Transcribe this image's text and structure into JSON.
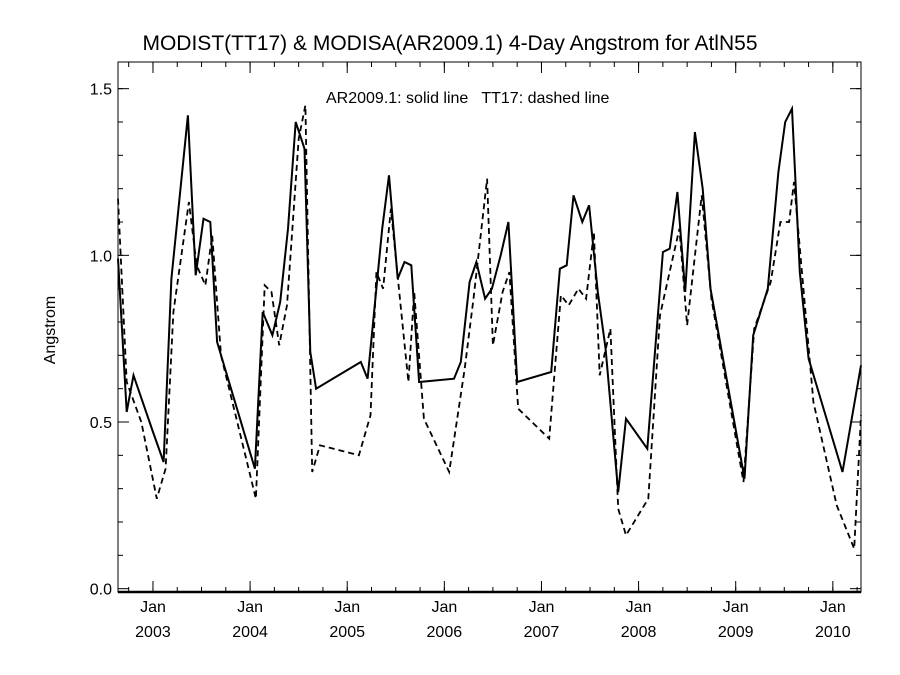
{
  "chart_data": {
    "type": "line",
    "title": "MODIST(TT17) & MODISA(AR2009.1) 4-Day Angstrom for AtlN55",
    "annotation": "AR2009.1: solid line   TT17: dashed line",
    "ylabel": "Angstrom",
    "xlabel": "",
    "xlim": [
      2002.64,
      2010.29
    ],
    "ylim": [
      -0.01,
      1.58
    ],
    "y_ticks": [
      {
        "value": 0.0,
        "label": "0.0"
      },
      {
        "value": 0.5,
        "label": "0.5"
      },
      {
        "value": 1.0,
        "label": "1.0"
      },
      {
        "value": 1.5,
        "label": "1.5"
      }
    ],
    "x_ticks": [
      {
        "value": 2003.0,
        "month": "Jan",
        "year": "2003"
      },
      {
        "value": 2004.0,
        "month": "Jan",
        "year": "2004"
      },
      {
        "value": 2005.0,
        "month": "Jan",
        "year": "2005"
      },
      {
        "value": 2006.0,
        "month": "Jan",
        "year": "2006"
      },
      {
        "value": 2007.0,
        "month": "Jan",
        "year": "2007"
      },
      {
        "value": 2008.0,
        "month": "Jan",
        "year": "2008"
      },
      {
        "value": 2009.0,
        "month": "Jan",
        "year": "2009"
      },
      {
        "value": 2010.0,
        "month": "Jan",
        "year": "2010"
      }
    ],
    "series": [
      {
        "name": "AR2009.1",
        "style": "solid",
        "points": [
          [
            2002.64,
            0.99
          ],
          [
            2002.73,
            0.53
          ],
          [
            2002.8,
            0.64
          ],
          [
            2003.0,
            0.47
          ],
          [
            2003.11,
            0.38
          ],
          [
            2003.19,
            0.93
          ],
          [
            2003.36,
            1.42
          ],
          [
            2003.44,
            0.94
          ],
          [
            2003.52,
            1.11
          ],
          [
            2003.59,
            1.1
          ],
          [
            2003.66,
            0.74
          ],
          [
            2004.05,
            0.36
          ],
          [
            2004.13,
            0.83
          ],
          [
            2004.23,
            0.76
          ],
          [
            2004.31,
            0.86
          ],
          [
            2004.39,
            1.08
          ],
          [
            2004.47,
            1.4
          ],
          [
            2004.56,
            1.32
          ],
          [
            2004.62,
            0.71
          ],
          [
            2004.68,
            0.6
          ],
          [
            2005.14,
            0.68
          ],
          [
            2005.21,
            0.63
          ],
          [
            2005.36,
            1.08
          ],
          [
            2005.43,
            1.24
          ],
          [
            2005.52,
            0.93
          ],
          [
            2005.59,
            0.98
          ],
          [
            2005.66,
            0.97
          ],
          [
            2005.74,
            0.62
          ],
          [
            2006.1,
            0.63
          ],
          [
            2006.17,
            0.68
          ],
          [
            2006.26,
            0.92
          ],
          [
            2006.33,
            0.98
          ],
          [
            2006.42,
            0.87
          ],
          [
            2006.49,
            0.9
          ],
          [
            2006.58,
            1.0
          ],
          [
            2006.66,
            1.1
          ],
          [
            2006.75,
            0.62
          ],
          [
            2007.1,
            0.65
          ],
          [
            2007.19,
            0.96
          ],
          [
            2007.26,
            0.97
          ],
          [
            2007.33,
            1.18
          ],
          [
            2007.42,
            1.1
          ],
          [
            2007.49,
            1.15
          ],
          [
            2007.58,
            0.89
          ],
          [
            2007.66,
            0.72
          ],
          [
            2007.79,
            0.29
          ],
          [
            2007.87,
            0.51
          ],
          [
            2008.09,
            0.42
          ],
          [
            2008.25,
            1.01
          ],
          [
            2008.32,
            1.02
          ],
          [
            2008.4,
            1.19
          ],
          [
            2008.48,
            0.89
          ],
          [
            2008.58,
            1.37
          ],
          [
            2008.66,
            1.2
          ],
          [
            2008.74,
            0.9
          ],
          [
            2009.09,
            0.33
          ],
          [
            2009.18,
            0.76
          ],
          [
            2009.33,
            0.9
          ],
          [
            2009.44,
            1.25
          ],
          [
            2009.51,
            1.4
          ],
          [
            2009.58,
            1.44
          ],
          [
            2009.66,
            0.95
          ],
          [
            2009.75,
            0.69
          ],
          [
            2010.1,
            0.35
          ],
          [
            2010.29,
            0.67
          ]
        ]
      },
      {
        "name": "TT17",
        "style": "dashed",
        "points": [
          [
            2002.64,
            1.17
          ],
          [
            2002.73,
            0.62
          ],
          [
            2002.88,
            0.5
          ],
          [
            2003.04,
            0.27
          ],
          [
            2003.13,
            0.36
          ],
          [
            2003.21,
            0.83
          ],
          [
            2003.37,
            1.16
          ],
          [
            2003.45,
            0.97
          ],
          [
            2003.54,
            0.91
          ],
          [
            2003.61,
            1.06
          ],
          [
            2003.7,
            0.7
          ],
          [
            2004.06,
            0.27
          ],
          [
            2004.15,
            0.91
          ],
          [
            2004.22,
            0.89
          ],
          [
            2004.3,
            0.73
          ],
          [
            2004.38,
            0.85
          ],
          [
            2004.5,
            1.35
          ],
          [
            2004.57,
            1.45
          ],
          [
            2004.64,
            0.35
          ],
          [
            2004.72,
            0.43
          ],
          [
            2005.12,
            0.4
          ],
          [
            2005.24,
            0.52
          ],
          [
            2005.3,
            0.95
          ],
          [
            2005.37,
            0.9
          ],
          [
            2005.45,
            1.14
          ],
          [
            2005.55,
            0.85
          ],
          [
            2005.63,
            0.62
          ],
          [
            2005.69,
            0.89
          ],
          [
            2005.79,
            0.51
          ],
          [
            2006.05,
            0.35
          ],
          [
            2006.21,
            0.66
          ],
          [
            2006.3,
            0.87
          ],
          [
            2006.44,
            1.23
          ],
          [
            2006.5,
            0.73
          ],
          [
            2006.6,
            0.89
          ],
          [
            2006.67,
            0.95
          ],
          [
            2006.76,
            0.54
          ],
          [
            2007.08,
            0.45
          ],
          [
            2007.2,
            0.88
          ],
          [
            2007.28,
            0.85
          ],
          [
            2007.38,
            0.9
          ],
          [
            2007.46,
            0.87
          ],
          [
            2007.54,
            1.07
          ],
          [
            2007.6,
            0.64
          ],
          [
            2007.71,
            0.78
          ],
          [
            2007.79,
            0.24
          ],
          [
            2007.87,
            0.16
          ],
          [
            2008.1,
            0.27
          ],
          [
            2008.22,
            0.82
          ],
          [
            2008.35,
            0.99
          ],
          [
            2008.42,
            1.08
          ],
          [
            2008.5,
            0.79
          ],
          [
            2008.65,
            1.18
          ],
          [
            2008.75,
            0.87
          ],
          [
            2009.08,
            0.32
          ],
          [
            2009.19,
            0.78
          ],
          [
            2009.36,
            0.92
          ],
          [
            2009.46,
            1.1
          ],
          [
            2009.55,
            1.1
          ],
          [
            2009.6,
            1.22
          ],
          [
            2009.7,
            0.89
          ],
          [
            2009.8,
            0.56
          ],
          [
            2010.04,
            0.25
          ],
          [
            2010.22,
            0.12
          ],
          [
            2010.29,
            0.52
          ]
        ]
      }
    ],
    "grid": false,
    "legend": "none"
  }
}
